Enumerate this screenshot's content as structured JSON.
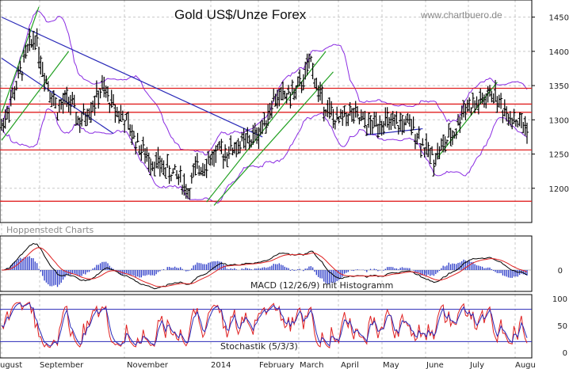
{
  "chart_data": {
    "type": "candlestick",
    "title": "Gold US$/Unze Forex",
    "watermark": "www.chartbuero.de",
    "source_label": "Hoppenstedt Charts",
    "price_axis": {
      "ylim": [
        1150,
        1475
      ],
      "ticks": [
        1200,
        1250,
        1300,
        1350,
        1400,
        1450
      ]
    },
    "x_axis": {
      "months": [
        "August",
        "September",
        "November",
        "2014",
        "February",
        "March",
        "April",
        "May",
        "June",
        "July",
        "August"
      ],
      "month_tick_labels": [
        "ugust",
        "September",
        "November",
        "2014",
        "February",
        "March",
        "April",
        "May",
        "June",
        "July",
        "Augu"
      ]
    },
    "price_path": [
      {
        "t": 0,
        "v": 1290
      },
      {
        "t": 6,
        "v": 1335
      },
      {
        "t": 14,
        "v": 1400
      },
      {
        "t": 18,
        "v": 1425
      },
      {
        "t": 22,
        "v": 1375
      },
      {
        "t": 26,
        "v": 1345
      },
      {
        "t": 30,
        "v": 1315
      },
      {
        "t": 36,
        "v": 1330
      },
      {
        "t": 42,
        "v": 1295
      },
      {
        "t": 48,
        "v": 1320
      },
      {
        "t": 54,
        "v": 1345
      },
      {
        "t": 60,
        "v": 1320
      },
      {
        "t": 66,
        "v": 1300
      },
      {
        "t": 72,
        "v": 1270
      },
      {
        "t": 78,
        "v": 1245
      },
      {
        "t": 84,
        "v": 1235
      },
      {
        "t": 90,
        "v": 1225
      },
      {
        "t": 96,
        "v": 1215
      },
      {
        "t": 100,
        "v": 1195
      },
      {
        "t": 104,
        "v": 1225
      },
      {
        "t": 110,
        "v": 1240
      },
      {
        "t": 116,
        "v": 1250
      },
      {
        "t": 122,
        "v": 1255
      },
      {
        "t": 128,
        "v": 1265
      },
      {
        "t": 134,
        "v": 1270
      },
      {
        "t": 140,
        "v": 1290
      },
      {
        "t": 146,
        "v": 1330
      },
      {
        "t": 152,
        "v": 1335
      },
      {
        "t": 158,
        "v": 1340
      },
      {
        "t": 162,
        "v": 1360
      },
      {
        "t": 166,
        "v": 1385
      },
      {
        "t": 170,
        "v": 1340
      },
      {
        "t": 174,
        "v": 1320
      },
      {
        "t": 180,
        "v": 1295
      },
      {
        "t": 186,
        "v": 1310
      },
      {
        "t": 192,
        "v": 1300
      },
      {
        "t": 198,
        "v": 1290
      },
      {
        "t": 204,
        "v": 1300
      },
      {
        "t": 210,
        "v": 1290
      },
      {
        "t": 216,
        "v": 1295
      },
      {
        "t": 222,
        "v": 1285
      },
      {
        "t": 228,
        "v": 1255
      },
      {
        "t": 232,
        "v": 1245
      },
      {
        "t": 238,
        "v": 1265
      },
      {
        "t": 244,
        "v": 1285
      },
      {
        "t": 248,
        "v": 1320
      },
      {
        "t": 254,
        "v": 1320
      },
      {
        "t": 260,
        "v": 1330
      },
      {
        "t": 264,
        "v": 1340
      },
      {
        "t": 268,
        "v": 1320
      },
      {
        "t": 274,
        "v": 1305
      },
      {
        "t": 278,
        "v": 1295
      },
      {
        "t": 282,
        "v": 1290
      }
    ],
    "support_resistance_levels": [
      1346,
      1323,
      1311,
      1256,
      1181
    ],
    "indicators": [
      {
        "name": "MACD (12/26/9) mit Histogramm",
        "ticks": [
          0
        ],
        "lines": [
          "black",
          "red"
        ],
        "histogram": "blue"
      },
      {
        "name": "Stochastik (5/3/3)",
        "ticks": [
          0,
          50,
          100
        ],
        "levels": [
          20,
          80
        ],
        "lines": [
          "red",
          "blue"
        ]
      }
    ],
    "colors": {
      "background": "#ffffff",
      "grid": "#c8c8c8",
      "bars": "#000000",
      "bollinger": "#8a2be2",
      "horizontal_levels": "#e02020",
      "trend_blue": "#2a2ab8",
      "trend_green": "#22a022",
      "macd_line": "#000000",
      "signal_line": "#e02020",
      "histogram": "#2a3ac8",
      "stoch_k": "#e02020",
      "stoch_d": "#2a2ab8"
    }
  }
}
